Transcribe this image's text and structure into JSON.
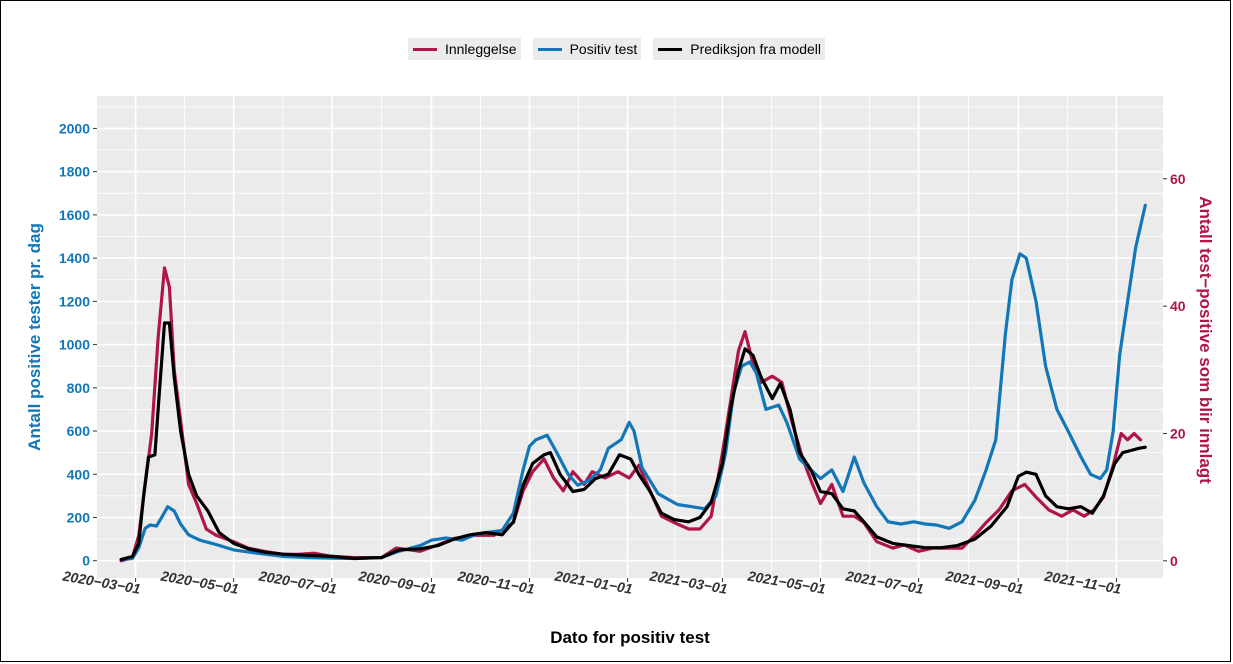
{
  "legend": {
    "items": [
      {
        "label": "Innleggelse",
        "color": "#B0154A"
      },
      {
        "label": "Positiv test",
        "color": "#1177B8"
      },
      {
        "label": "Prediksjon fra modell",
        "color": "#000000"
      }
    ]
  },
  "chart_data": {
    "type": "line",
    "title": "",
    "xlabel": "Dato for positiv test",
    "ylabel_left": "Antall positive tester pr. dag",
    "ylabel_right": "Antall test−positive som blir innlagt",
    "x_ticks": [
      "2020−03−01",
      "2020−05−01",
      "2020−07−01",
      "2020−09−01",
      "2020−11−01",
      "2021−01−01",
      "2021−03−01",
      "2021−05−01",
      "2021−07−01",
      "2021−09−01",
      "2021−11−01"
    ],
    "y_left_ticks": [
      "0",
      "200",
      "400",
      "600",
      "800",
      "1000",
      "1200",
      "1400",
      "1600",
      "1800",
      "2000"
    ],
    "y_right_ticks": [
      "0",
      "20",
      "40",
      "60"
    ],
    "ylim_left": [
      -80,
      2150
    ],
    "ylim_right": [
      -2.7,
      73.0
    ],
    "xlim": [
      "2020-02-06",
      "2021-11-30"
    ],
    "grid": true,
    "legend_position": "top",
    "colors": {
      "left_axis": "#1177B8",
      "right_axis": "#B0154A",
      "panel": "#EBEBEB"
    },
    "series": [
      {
        "name": "Positiv test",
        "color": "#1177B8",
        "axis": "left",
        "points": [
          [
            "2020-02-21",
            5
          ],
          [
            "2020-02-28",
            10
          ],
          [
            "2020-03-03",
            60
          ],
          [
            "2020-03-07",
            150
          ],
          [
            "2020-03-10",
            165
          ],
          [
            "2020-03-14",
            160
          ],
          [
            "2020-03-18",
            210
          ],
          [
            "2020-03-21",
            250
          ],
          [
            "2020-03-25",
            230
          ],
          [
            "2020-03-29",
            170
          ],
          [
            "2020-04-03",
            120
          ],
          [
            "2020-04-10",
            95
          ],
          [
            "2020-04-20",
            75
          ],
          [
            "2020-05-01",
            50
          ],
          [
            "2020-05-15",
            35
          ],
          [
            "2020-06-01",
            20
          ],
          [
            "2020-06-15",
            15
          ],
          [
            "2020-07-01",
            12
          ],
          [
            "2020-07-15",
            10
          ],
          [
            "2020-08-01",
            15
          ],
          [
            "2020-08-10",
            40
          ],
          [
            "2020-08-25",
            70
          ],
          [
            "2020-09-01",
            95
          ],
          [
            "2020-09-10",
            105
          ],
          [
            "2020-09-20",
            95
          ],
          [
            "2020-09-28",
            120
          ],
          [
            "2020-10-05",
            130
          ],
          [
            "2020-10-15",
            140
          ],
          [
            "2020-10-22",
            220
          ],
          [
            "2020-10-28",
            420
          ],
          [
            "2020-11-01",
            530
          ],
          [
            "2020-11-05",
            560
          ],
          [
            "2020-11-12",
            580
          ],
          [
            "2020-11-18",
            500
          ],
          [
            "2020-11-25",
            400
          ],
          [
            "2020-12-01",
            350
          ],
          [
            "2020-12-08",
            370
          ],
          [
            "2020-12-15",
            420
          ],
          [
            "2020-12-20",
            520
          ],
          [
            "2020-12-28",
            560
          ],
          [
            "2021-01-02",
            640
          ],
          [
            "2021-01-05",
            600
          ],
          [
            "2021-01-10",
            430
          ],
          [
            "2021-01-20",
            310
          ],
          [
            "2021-02-01",
            260
          ],
          [
            "2021-02-10",
            250
          ],
          [
            "2021-02-18",
            240
          ],
          [
            "2021-02-25",
            300
          ],
          [
            "2021-03-03",
            500
          ],
          [
            "2021-03-08",
            780
          ],
          [
            "2021-03-13",
            900
          ],
          [
            "2021-03-18",
            920
          ],
          [
            "2021-03-22",
            870
          ],
          [
            "2021-03-28",
            700
          ],
          [
            "2021-04-05",
            720
          ],
          [
            "2021-04-10",
            640
          ],
          [
            "2021-04-18",
            470
          ],
          [
            "2021-04-25",
            420
          ],
          [
            "2021-05-01",
            380
          ],
          [
            "2021-05-08",
            420
          ],
          [
            "2021-05-15",
            320
          ],
          [
            "2021-05-22",
            480
          ],
          [
            "2021-05-28",
            360
          ],
          [
            "2021-06-05",
            250
          ],
          [
            "2021-06-12",
            180
          ],
          [
            "2021-06-20",
            170
          ],
          [
            "2021-06-28",
            180
          ],
          [
            "2021-07-05",
            170
          ],
          [
            "2021-07-12",
            165
          ],
          [
            "2021-07-20",
            150
          ],
          [
            "2021-07-28",
            180
          ],
          [
            "2021-08-05",
            280
          ],
          [
            "2021-08-12",
            420
          ],
          [
            "2021-08-18",
            560
          ],
          [
            "2021-08-24",
            1050
          ],
          [
            "2021-08-28",
            1300
          ],
          [
            "2021-09-02",
            1420
          ],
          [
            "2021-09-06",
            1400
          ],
          [
            "2021-09-12",
            1200
          ],
          [
            "2021-09-18",
            900
          ],
          [
            "2021-09-25",
            700
          ],
          [
            "2021-10-02",
            600
          ],
          [
            "2021-10-10",
            480
          ],
          [
            "2021-10-16",
            400
          ],
          [
            "2021-10-22",
            380
          ],
          [
            "2021-10-26",
            420
          ],
          [
            "2021-10-30",
            600
          ],
          [
            "2021-11-03",
            950
          ],
          [
            "2021-11-08",
            1200
          ],
          [
            "2021-11-13",
            1450
          ],
          [
            "2021-11-19",
            1645
          ]
        ]
      },
      {
        "name": "Innleggelse",
        "color": "#B0154A",
        "axis": "right",
        "points": [
          [
            "2020-02-21",
            0
          ],
          [
            "2020-02-28",
            0.5
          ],
          [
            "2020-03-03",
            4
          ],
          [
            "2020-03-07",
            12
          ],
          [
            "2020-03-11",
            20
          ],
          [
            "2020-03-15",
            35
          ],
          [
            "2020-03-19",
            46
          ],
          [
            "2020-03-22",
            43
          ],
          [
            "2020-03-25",
            30
          ],
          [
            "2020-03-29",
            22
          ],
          [
            "2020-04-03",
            12
          ],
          [
            "2020-04-08",
            9
          ],
          [
            "2020-04-14",
            5
          ],
          [
            "2020-04-20",
            4
          ],
          [
            "2020-05-01",
            3
          ],
          [
            "2020-05-10",
            2
          ],
          [
            "2020-05-20",
            1.5
          ],
          [
            "2020-06-01",
            1
          ],
          [
            "2020-06-10",
            1
          ],
          [
            "2020-06-20",
            1.2
          ],
          [
            "2020-07-01",
            0.7
          ],
          [
            "2020-07-15",
            0.5
          ],
          [
            "2020-08-01",
            0.5
          ],
          [
            "2020-08-10",
            2
          ],
          [
            "2020-08-25",
            1.5
          ],
          [
            "2020-09-05",
            2.5
          ],
          [
            "2020-09-15",
            3.5
          ],
          [
            "2020-09-28",
            4
          ],
          [
            "2020-10-10",
            4
          ],
          [
            "2020-10-22",
            6
          ],
          [
            "2020-10-28",
            11
          ],
          [
            "2020-11-03",
            14
          ],
          [
            "2020-11-10",
            16
          ],
          [
            "2020-11-16",
            13
          ],
          [
            "2020-11-22",
            11
          ],
          [
            "2020-11-28",
            14
          ],
          [
            "2020-12-05",
            12
          ],
          [
            "2020-12-10",
            14
          ],
          [
            "2020-12-18",
            13
          ],
          [
            "2020-12-26",
            14
          ],
          [
            "2021-01-02",
            13
          ],
          [
            "2021-01-08",
            15
          ],
          [
            "2021-01-15",
            11
          ],
          [
            "2021-01-22",
            7
          ],
          [
            "2021-01-30",
            6
          ],
          [
            "2021-02-08",
            5
          ],
          [
            "2021-02-15",
            5
          ],
          [
            "2021-02-22",
            7
          ],
          [
            "2021-03-01",
            17
          ],
          [
            "2021-03-06",
            25
          ],
          [
            "2021-03-11",
            33
          ],
          [
            "2021-03-15",
            36
          ],
          [
            "2021-03-20",
            31
          ],
          [
            "2021-03-25",
            28
          ],
          [
            "2021-04-01",
            29
          ],
          [
            "2021-04-07",
            28
          ],
          [
            "2021-04-13",
            22
          ],
          [
            "2021-04-20",
            16
          ],
          [
            "2021-04-26",
            12
          ],
          [
            "2021-05-01",
            9
          ],
          [
            "2021-05-08",
            12
          ],
          [
            "2021-05-15",
            7
          ],
          [
            "2021-05-22",
            7
          ],
          [
            "2021-05-28",
            6
          ],
          [
            "2021-06-05",
            3
          ],
          [
            "2021-06-15",
            2
          ],
          [
            "2021-06-22",
            2.5
          ],
          [
            "2021-07-01",
            1.5
          ],
          [
            "2021-07-10",
            2
          ],
          [
            "2021-07-20",
            2
          ],
          [
            "2021-07-28",
            2
          ],
          [
            "2021-08-05",
            4
          ],
          [
            "2021-08-12",
            6
          ],
          [
            "2021-08-20",
            8
          ],
          [
            "2021-08-28",
            11
          ],
          [
            "2021-09-05",
            12
          ],
          [
            "2021-09-12",
            10
          ],
          [
            "2021-09-20",
            8
          ],
          [
            "2021-09-28",
            7
          ],
          [
            "2021-10-05",
            8
          ],
          [
            "2021-10-12",
            7
          ],
          [
            "2021-10-18",
            8
          ],
          [
            "2021-10-24",
            10
          ],
          [
            "2021-10-30",
            15
          ],
          [
            "2021-11-04",
            20
          ],
          [
            "2021-11-08",
            19
          ],
          [
            "2021-11-12",
            20
          ],
          [
            "2021-11-16",
            19
          ]
        ]
      },
      {
        "name": "Prediksjon fra modell",
        "color": "#000000",
        "axis": "left",
        "points": [
          [
            "2020-02-21",
            5
          ],
          [
            "2020-02-28",
            20
          ],
          [
            "2020-03-03",
            80
          ],
          [
            "2020-03-06",
            300
          ],
          [
            "2020-03-09",
            480
          ],
          [
            "2020-03-13",
            490
          ],
          [
            "2020-03-16",
            800
          ],
          [
            "2020-03-19",
            1100
          ],
          [
            "2020-03-22",
            1100
          ],
          [
            "2020-03-25",
            850
          ],
          [
            "2020-03-29",
            600
          ],
          [
            "2020-04-03",
            400
          ],
          [
            "2020-04-08",
            300
          ],
          [
            "2020-04-15",
            230
          ],
          [
            "2020-04-22",
            130
          ],
          [
            "2020-05-01",
            80
          ],
          [
            "2020-05-10",
            55
          ],
          [
            "2020-05-20",
            40
          ],
          [
            "2020-06-01",
            30
          ],
          [
            "2020-06-15",
            25
          ],
          [
            "2020-07-01",
            20
          ],
          [
            "2020-07-15",
            10
          ],
          [
            "2020-08-01",
            15
          ],
          [
            "2020-08-12",
            50
          ],
          [
            "2020-08-25",
            55
          ],
          [
            "2020-09-05",
            70
          ],
          [
            "2020-09-15",
            100
          ],
          [
            "2020-09-25",
            120
          ],
          [
            "2020-10-05",
            130
          ],
          [
            "2020-10-15",
            120
          ],
          [
            "2020-10-22",
            180
          ],
          [
            "2020-10-28",
            350
          ],
          [
            "2020-11-03",
            450
          ],
          [
            "2020-11-10",
            490
          ],
          [
            "2020-11-14",
            500
          ],
          [
            "2020-11-20",
            400
          ],
          [
            "2020-11-28",
            320
          ],
          [
            "2020-12-05",
            330
          ],
          [
            "2020-12-12",
            380
          ],
          [
            "2020-12-20",
            400
          ],
          [
            "2020-12-27",
            490
          ],
          [
            "2021-01-03",
            470
          ],
          [
            "2021-01-08",
            400
          ],
          [
            "2021-01-15",
            320
          ],
          [
            "2021-01-22",
            220
          ],
          [
            "2021-01-30",
            190
          ],
          [
            "2021-02-08",
            180
          ],
          [
            "2021-02-15",
            200
          ],
          [
            "2021-02-22",
            270
          ],
          [
            "2021-03-01",
            450
          ],
          [
            "2021-03-06",
            700
          ],
          [
            "2021-03-11",
            880
          ],
          [
            "2021-03-15",
            980
          ],
          [
            "2021-03-20",
            950
          ],
          [
            "2021-03-25",
            850
          ],
          [
            "2021-04-01",
            750
          ],
          [
            "2021-04-06",
            820
          ],
          [
            "2021-04-12",
            700
          ],
          [
            "2021-04-18",
            500
          ],
          [
            "2021-04-25",
            420
          ],
          [
            "2021-05-01",
            320
          ],
          [
            "2021-05-08",
            310
          ],
          [
            "2021-05-15",
            240
          ],
          [
            "2021-05-22",
            230
          ],
          [
            "2021-05-28",
            180
          ],
          [
            "2021-06-05",
            110
          ],
          [
            "2021-06-15",
            80
          ],
          [
            "2021-06-25",
            70
          ],
          [
            "2021-07-05",
            60
          ],
          [
            "2021-07-15",
            60
          ],
          [
            "2021-07-25",
            70
          ],
          [
            "2021-08-05",
            100
          ],
          [
            "2021-08-15",
            160
          ],
          [
            "2021-08-25",
            250
          ],
          [
            "2021-09-01",
            390
          ],
          [
            "2021-09-06",
            410
          ],
          [
            "2021-09-12",
            400
          ],
          [
            "2021-09-18",
            300
          ],
          [
            "2021-09-25",
            250
          ],
          [
            "2021-10-02",
            240
          ],
          [
            "2021-10-10",
            250
          ],
          [
            "2021-10-17",
            220
          ],
          [
            "2021-10-24",
            300
          ],
          [
            "2021-10-31",
            450
          ],
          [
            "2021-11-05",
            500
          ],
          [
            "2021-11-10",
            510
          ],
          [
            "2021-11-15",
            520
          ],
          [
            "2021-11-19",
            525
          ]
        ]
      }
    ]
  }
}
